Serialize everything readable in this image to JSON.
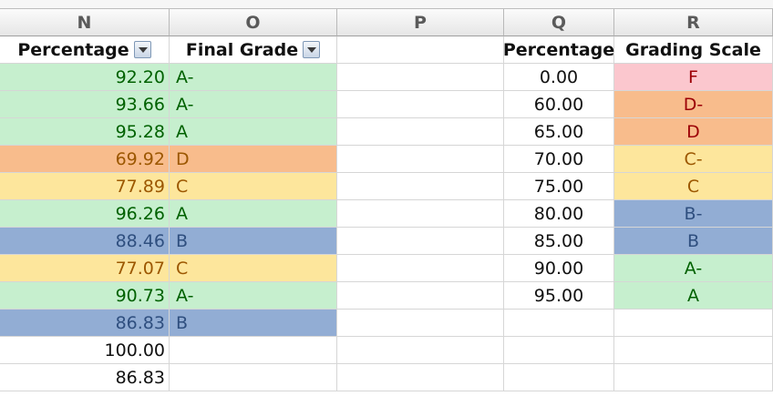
{
  "columns": [
    "N",
    "O",
    "P",
    "Q",
    "R"
  ],
  "headers": {
    "n": "Percentage",
    "o": "Final Grade",
    "q": "Percentage",
    "r": "Grading Scale"
  },
  "data_rows": [
    {
      "pct": "92.20",
      "grade": "A-",
      "fill": "green"
    },
    {
      "pct": "93.66",
      "grade": "A-",
      "fill": "green"
    },
    {
      "pct": "95.28",
      "grade": "A",
      "fill": "green"
    },
    {
      "pct": "69.92",
      "grade": "D",
      "fill": "orange"
    },
    {
      "pct": "77.89",
      "grade": "C",
      "fill": "yellow"
    },
    {
      "pct": "96.26",
      "grade": "A",
      "fill": "green"
    },
    {
      "pct": "88.46",
      "grade": "B",
      "fill": "blue"
    },
    {
      "pct": "77.07",
      "grade": "C",
      "fill": "yellow"
    },
    {
      "pct": "90.73",
      "grade": "A-",
      "fill": "green"
    },
    {
      "pct": "86.83",
      "grade": "B",
      "fill": "blue"
    },
    {
      "pct": "100.00",
      "grade": "",
      "fill": "none"
    },
    {
      "pct": "86.83",
      "grade": "",
      "fill": "none"
    }
  ],
  "scale_rows": [
    {
      "pct": "0.00",
      "grade": "F",
      "fill": "pink"
    },
    {
      "pct": "60.00",
      "grade": "D-",
      "fill": "orange"
    },
    {
      "pct": "65.00",
      "grade": "D",
      "fill": "orange"
    },
    {
      "pct": "70.00",
      "grade": "C-",
      "fill": "yellow"
    },
    {
      "pct": "75.00",
      "grade": "C",
      "fill": "yellow"
    },
    {
      "pct": "80.00",
      "grade": "B-",
      "fill": "blue"
    },
    {
      "pct": "85.00",
      "grade": "B",
      "fill": "blue"
    },
    {
      "pct": "90.00",
      "grade": "A-",
      "fill": "green"
    },
    {
      "pct": "95.00",
      "grade": "A",
      "fill": "green"
    }
  ],
  "fill_colors": {
    "green": "#c6efce",
    "orange": "#f8bc8c",
    "yellow": "#fde69c",
    "blue": "#92add4",
    "pink": "#fbc7ce"
  },
  "text_colors": {
    "green": "#006100",
    "orange": "#9c5700",
    "yellow": "#9c5700",
    "blue": "#2f4f7f",
    "pink": "#9c0006",
    "orange_scale": "#9c0006",
    "none": "#111111"
  }
}
